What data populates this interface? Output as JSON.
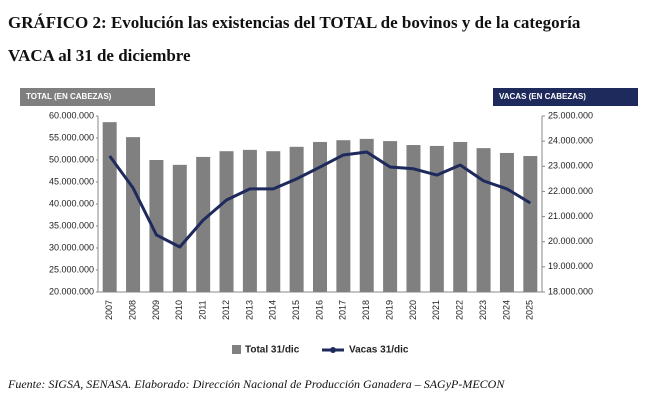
{
  "chart_data": {
    "type": "bar-line",
    "title": "GRÁFICO 2: Evolución las existencias del TOTAL de bovinos y de la categoría",
    "subtitle": "VACA al 31 de diciembre",
    "ylabel": "TOTAL (EN CABEZAS)",
    "y2label": "VACAS (EN CABEZAS)",
    "source": "Fuente: SIGSA, SENASA. Elaborado: Dirección Nacional de Producción Ganadera – SAGyP-MECON",
    "categories": [
      "2007",
      "2008",
      "2009",
      "2010",
      "2011",
      "2012",
      "2013",
      "2014",
      "2015",
      "2016",
      "2017",
      "2018",
      "2019",
      "2020",
      "2021",
      "2022",
      "2023",
      "2024",
      "2025"
    ],
    "series": [
      {
        "name": "Total 31/dic",
        "type": "bar",
        "color": "#808080",
        "values": [
          58600000,
          55200000,
          50000000,
          48900000,
          50700000,
          52000000,
          52300000,
          52000000,
          53000000,
          54100000,
          54500000,
          54800000,
          54300000,
          53400000,
          53200000,
          54100000,
          52700000,
          51600000,
          50900000
        ]
      },
      {
        "name": "Vacas 31/dic",
        "type": "line",
        "axis": "y2",
        "color": "#1f2a5c",
        "values": [
          23410000,
          22140000,
          20270000,
          19790000,
          20860000,
          21660000,
          22100000,
          22100000,
          22500000,
          22970000,
          23450000,
          23570000,
          22970000,
          22900000,
          22650000,
          23050000,
          22420000,
          22100000,
          21540000
        ]
      }
    ],
    "ylim": [
      20000000,
      60000000
    ],
    "yticks": [
      {
        "value": 20000000,
        "label": "20.000.000"
      },
      {
        "value": 25000000,
        "label": "25.000.000"
      },
      {
        "value": 30000000,
        "label": "30.000.000"
      },
      {
        "value": 35000000,
        "label": "35.000.000"
      },
      {
        "value": 40000000,
        "label": "40.000.000"
      },
      {
        "value": 45000000,
        "label": "45.000.000"
      },
      {
        "value": 50000000,
        "label": "50.000.000"
      },
      {
        "value": 55000000,
        "label": "55.000.000"
      },
      {
        "value": 60000000,
        "label": "60.000.000"
      }
    ],
    "y2lim": [
      18000000,
      25000000
    ],
    "y2ticks": [
      {
        "value": 18000000,
        "label": "18.000.000"
      },
      {
        "value": 19000000,
        "label": "19.000.000"
      },
      {
        "value": 20000000,
        "label": "20.000.000"
      },
      {
        "value": 21000000,
        "label": "21.000.000"
      },
      {
        "value": 22000000,
        "label": "22.000.000"
      },
      {
        "value": 23000000,
        "label": "23.000.000"
      },
      {
        "value": 24000000,
        "label": "24.000.000"
      },
      {
        "value": 25000000,
        "label": "25.000.000"
      }
    ]
  }
}
